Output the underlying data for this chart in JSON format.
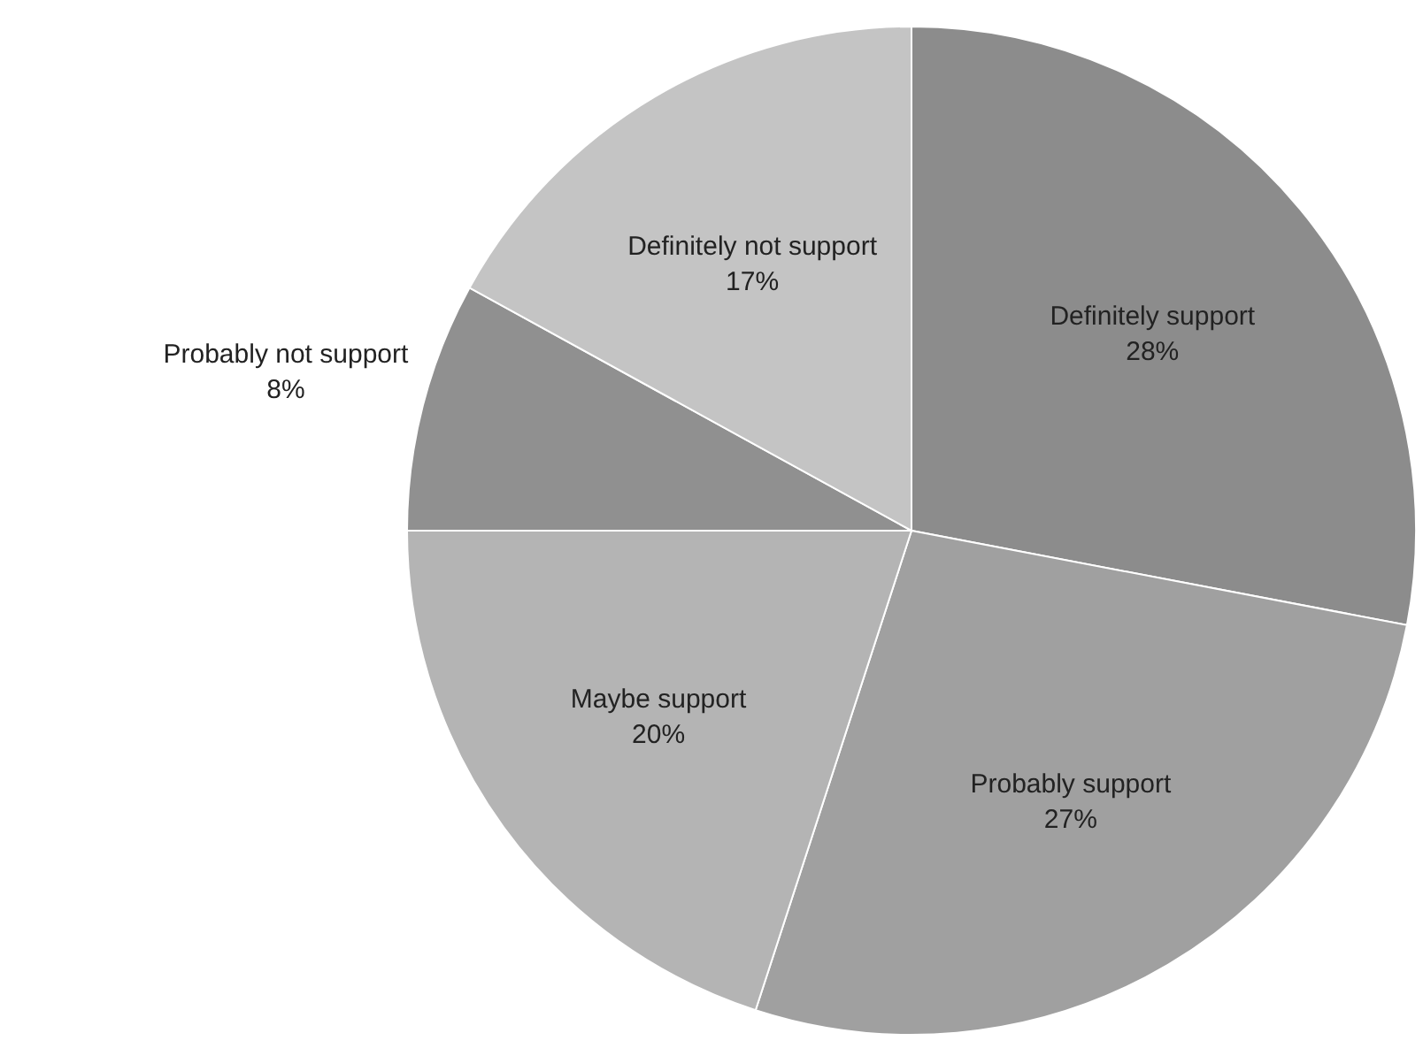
{
  "chart_data": {
    "type": "pie",
    "categories": [
      "Definitely support",
      "Probably support",
      "Maybe support",
      "Probably not support",
      "Definitely not support"
    ],
    "values": [
      28,
      27,
      20,
      8,
      17
    ],
    "colors": [
      "#8c8c8c",
      "#a0a0a0",
      "#b4b4b4",
      "#909090",
      "#c4c4c4"
    ],
    "value_labels": [
      "28%",
      "27%",
      "20%",
      "8%",
      "17%"
    ]
  }
}
